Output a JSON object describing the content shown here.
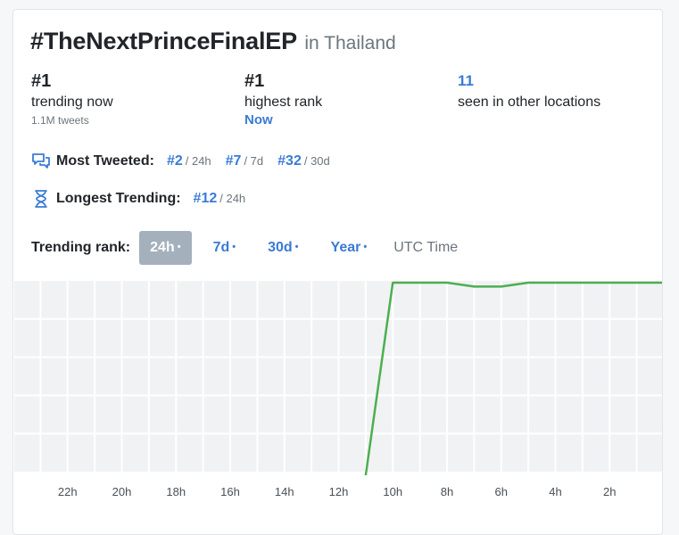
{
  "header": {
    "hashtag": "#TheNextPrinceFinalEP",
    "location": "in Thailand"
  },
  "stats": {
    "trending": {
      "value": "#1",
      "label": "trending now",
      "sub": "1.1M tweets"
    },
    "highest": {
      "value": "#1",
      "label": "highest rank",
      "when": "Now"
    },
    "locations": {
      "value": "11",
      "label": "seen in other locations"
    }
  },
  "most_tweeted": {
    "label": "Most Tweeted:",
    "icon": "chat-bubbles-icon",
    "ranks": [
      {
        "rank": "#2",
        "period": "/ 24h"
      },
      {
        "rank": "#7",
        "period": "/ 7d"
      },
      {
        "rank": "#32",
        "period": "/ 30d"
      }
    ]
  },
  "longest_trending": {
    "label": "Longest Trending:",
    "icon": "hourglass-icon",
    "ranks": [
      {
        "rank": "#12",
        "period": "/ 24h"
      }
    ]
  },
  "trend_tabs": {
    "label": "Trending rank:",
    "tabs": [
      {
        "label": "24h",
        "dot": "•",
        "active": true
      },
      {
        "label": "7d",
        "dot": "•",
        "active": false
      },
      {
        "label": "30d",
        "dot": "•",
        "active": false
      },
      {
        "label": "Year",
        "dot": "•",
        "active": false
      }
    ],
    "utc_label": "UTC Time"
  },
  "colors": {
    "accent": "#3a7bd5",
    "line": "#4caf50",
    "active_tab": "#a5b0bd",
    "grid_bg": "#f1f2f4"
  },
  "chart_data": {
    "type": "line",
    "title": "",
    "xlabel": "",
    "ylabel": "",
    "x_ticks": [
      "22h",
      "20h",
      "18h",
      "16h",
      "14h",
      "12h",
      "10h",
      "8h",
      "6h",
      "4h",
      "2h"
    ],
    "x_range_hours_ago": [
      24,
      0
    ],
    "y_rank_range": [
      1,
      50
    ],
    "series": [
      {
        "name": "",
        "points": [
          {
            "hours_ago": 11.0,
            "rank": 50
          },
          {
            "hours_ago": 10.0,
            "rank": 1
          },
          {
            "hours_ago": 8.0,
            "rank": 1
          },
          {
            "hours_ago": 7.0,
            "rank": 2
          },
          {
            "hours_ago": 6.0,
            "rank": 2
          },
          {
            "hours_ago": 5.0,
            "rank": 1
          },
          {
            "hours_ago": 0.0,
            "rank": 1
          }
        ]
      }
    ]
  }
}
